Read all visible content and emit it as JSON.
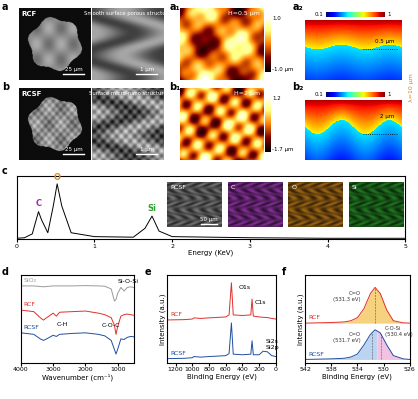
{
  "panels": [
    {
      "label": "a",
      "name": "RCF",
      "caption": "Smooth surface porous structure",
      "scale_bars": [
        "25 μm",
        "1 μm"
      ]
    },
    {
      "label": "b",
      "name": "RCSF",
      "caption": "Surface micro-nano structure",
      "scale_bars": [
        "25 μm",
        "1 μm"
      ]
    },
    {
      "label": "a₁",
      "height_label": "H=0.5 μm",
      "colorbar_labels": [
        "1.0",
        "-1.0 μm"
      ]
    },
    {
      "label": "b₁",
      "height_label": "H=2 μm",
      "colorbar_labels": [
        "1.2",
        "-1.7 μm"
      ]
    },
    {
      "label": "a₂",
      "depth_label": "0.5 μm",
      "colorbar_labels": [
        "0.1",
        "1"
      ],
      "wavelength_label": "λ=10 μm"
    },
    {
      "label": "b₂",
      "depth_label": "2 μm",
      "colorbar_labels": [
        "0.1",
        "1"
      ]
    }
  ],
  "chart_data": [
    {
      "label": "c",
      "type": "line",
      "xlabel": "Energy (KeV)",
      "x": [
        0,
        0.1,
        0.2,
        0.25,
        0.28,
        0.32,
        0.4,
        0.47,
        0.52,
        0.58,
        0.7,
        1.0,
        1.5,
        1.65,
        1.74,
        1.83,
        2.0,
        3,
        4,
        5
      ],
      "values": [
        0.02,
        0.03,
        0.1,
        0.35,
        0.5,
        0.35,
        0.12,
        0.6,
        1.0,
        0.6,
        0.12,
        0.05,
        0.04,
        0.2,
        0.42,
        0.15,
        0.05,
        0.03,
        0.02,
        0.02
      ],
      "color": "#000000",
      "xlim": [
        0,
        5
      ],
      "xticks": [
        0,
        1,
        2,
        3,
        4,
        5
      ],
      "ylim": [
        0,
        1.15
      ],
      "tick_labels": "x",
      "annotations": [
        {
          "text": "C",
          "x": 0.28,
          "y": 0.56,
          "color": "#9b30a8"
        },
        {
          "text": "O",
          "x": 0.52,
          "y": 1.04,
          "color": "#e08a1e"
        },
        {
          "text": "Si",
          "x": 1.74,
          "y": 0.47,
          "color": "#2ca02c"
        }
      ],
      "maps": [
        {
          "name": "RCSF",
          "color": "#9a9a9a",
          "scale_bar": "50 μm"
        },
        {
          "name": "C",
          "color": "#b040c8"
        },
        {
          "name": "O",
          "color": "#d2881c"
        },
        {
          "name": "Si",
          "color": "#2ca02c"
        }
      ]
    },
    {
      "label": "d",
      "type": "line",
      "xlabel": "Wavenumber (cm⁻¹)",
      "x": [
        4000,
        3600,
        3400,
        3300,
        3200,
        3000,
        2900,
        2800,
        2400,
        2000,
        1600,
        1400,
        1200,
        1100,
        1050,
        1000,
        900,
        800,
        700,
        600,
        500
      ],
      "series": [
        {
          "name": "SiO₂",
          "color": "#9a9a9a",
          "values": [
            2.55,
            2.55,
            2.53,
            2.52,
            2.53,
            2.55,
            2.55,
            2.55,
            2.55,
            2.56,
            2.55,
            2.54,
            2.45,
            2.05,
            2.1,
            2.3,
            2.5,
            2.38,
            2.5,
            2.52,
            2.5
          ]
        },
        {
          "name": "RCF",
          "color": "#e0302a",
          "values": [
            1.75,
            1.7,
            1.5,
            1.42,
            1.5,
            1.65,
            1.55,
            1.68,
            1.7,
            1.72,
            1.65,
            1.6,
            1.5,
            1.25,
            0.95,
            1.2,
            1.55,
            1.6,
            1.62,
            1.6,
            1.58
          ]
        },
        {
          "name": "RCSF",
          "color": "#1f4fa0",
          "values": [
            1.0,
            0.95,
            0.8,
            0.75,
            0.8,
            0.92,
            0.88,
            0.95,
            0.98,
            1.0,
            0.95,
            0.9,
            0.75,
            0.45,
            0.3,
            0.45,
            0.8,
            0.78,
            0.85,
            0.88,
            0.87
          ]
        }
      ],
      "xlim": [
        4000,
        500
      ],
      "xticks": [
        4000,
        3000,
        2000,
        1000
      ],
      "ylim": [
        0,
        2.9
      ],
      "tick_labels": "x",
      "annotations": [
        {
          "text": "Si-O-Si",
          "x": 1000,
          "y": 2.68
        },
        {
          "text": "C-H",
          "x": 2900,
          "y": 1.28
        },
        {
          "text": "C-O-C",
          "x": 1500,
          "y": 1.25
        }
      ]
    },
    {
      "label": "e",
      "type": "line",
      "xlabel": "Binding Energy (eV)",
      "ylabel": "Intensity (a.u.)",
      "x": [
        1300,
        1100,
        1000,
        980,
        900,
        800,
        600,
        560,
        532,
        510,
        400,
        300,
        285,
        270,
        200,
        153,
        102,
        50,
        0
      ],
      "series": [
        {
          "name": "RCF",
          "color": "#e0302a",
          "values": [
            1.45,
            1.46,
            1.48,
            1.52,
            1.5,
            1.52,
            1.55,
            1.62,
            2.7,
            1.62,
            1.6,
            1.62,
            2.15,
            1.58,
            1.55,
            1.54,
            1.53,
            1.5,
            1.48
          ]
        },
        {
          "name": "RCSF",
          "color": "#1f4fa0",
          "values": [
            0.15,
            0.16,
            0.18,
            0.22,
            0.2,
            0.22,
            0.25,
            0.32,
            1.35,
            0.3,
            0.28,
            0.3,
            0.75,
            0.28,
            0.28,
            0.4,
            0.38,
            0.25,
            0.22
          ]
        }
      ],
      "xlim": [
        1300,
        0
      ],
      "xticks": [
        1200,
        1000,
        800,
        600,
        400,
        200,
        0
      ],
      "ylim": [
        0,
        2.95
      ],
      "tick_labels": "x",
      "annotations": [
        {
          "text": "O1s",
          "x": 450,
          "y": 2.55
        },
        {
          "text": "C1s",
          "x": 260,
          "y": 2.05
        },
        {
          "text": "Si2s",
          "x": 125,
          "y": 0.72
        },
        {
          "text": "Si2p",
          "x": 125,
          "y": 0.52
        }
      ]
    },
    {
      "label": "f",
      "type": "line",
      "xlabel": "Binding Energy (eV)",
      "ylabel": "Intensity (a.u.)",
      "x": [
        542,
        540,
        538,
        536,
        535,
        534,
        533,
        532,
        531.3,
        530.5,
        529.5,
        528.5,
        527,
        526
      ],
      "series": [
        {
          "name": "RCF",
          "color": "#e0302a",
          "values": [
            1.32,
            1.33,
            1.34,
            1.36,
            1.4,
            1.5,
            1.8,
            2.3,
            2.5,
            2.3,
            1.75,
            1.4,
            1.33,
            1.32
          ],
          "components": [
            {
              "name": "C=O",
              "value": 531.3,
              "value_label": "(531.3 eV)",
              "color": "#f0b429",
              "x": 533.5,
              "y": 2.2
            }
          ]
        },
        {
          "name": "RCSF",
          "color": "#1f4fa0",
          "values": [
            0.12,
            0.13,
            0.14,
            0.16,
            0.2,
            0.3,
            0.6,
            0.95,
            1.1,
            1.0,
            0.6,
            0.25,
            0.14,
            0.12
          ],
          "components": [
            {
              "name": "C=O",
              "value": 531.7,
              "value_label": "(531.7 eV)",
              "color": "#8fb8e8",
              "x": 533.5,
              "y": 0.85
            },
            {
              "name": "C-O-Si",
              "value": 530.4,
              "value_label": "(530.4 eV)",
              "color": "#e89ad0",
              "x": 529.8,
              "y": 1.05
            }
          ]
        }
      ],
      "xlim": [
        542,
        526
      ],
      "xticks": [
        542,
        538,
        534,
        530,
        526
      ],
      "ylim": [
        0,
        2.9
      ],
      "tick_labels": "x"
    }
  ]
}
